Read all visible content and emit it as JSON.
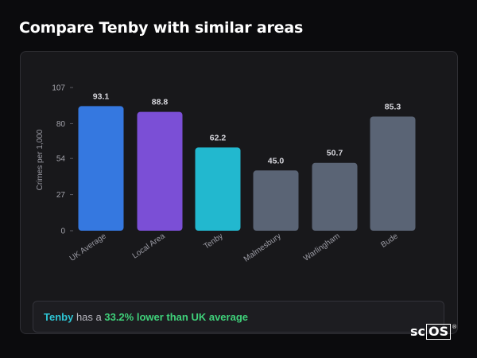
{
  "heading": "Compare Tenby with similar areas",
  "chart_data": {
    "type": "bar",
    "ylabel": "Crimes per 1,000",
    "ylim": [
      0,
      107
    ],
    "yticks": [
      0,
      27,
      54,
      80,
      107
    ],
    "categories": [
      "UK Average",
      "Local Area",
      "Tenby",
      "Malmesbury",
      "Warlingham",
      "Bude"
    ],
    "values": [
      93.1,
      88.8,
      62.2,
      45.0,
      50.7,
      85.3
    ],
    "value_labels": [
      "93.1",
      "88.8",
      "62.2",
      "45.0",
      "50.7",
      "85.3"
    ],
    "colors": [
      "#3578e0",
      "#7b4fd6",
      "#22b8cf",
      "#5a6475",
      "#5a6475",
      "#5a6475"
    ],
    "grid": false,
    "legend": "none"
  },
  "callout": {
    "town": "Tenby",
    "middle": " has a ",
    "difference": "33.2% lower than UK average"
  },
  "brand": {
    "prefix": "sc",
    "boxed": "OS",
    "mark": "®"
  }
}
